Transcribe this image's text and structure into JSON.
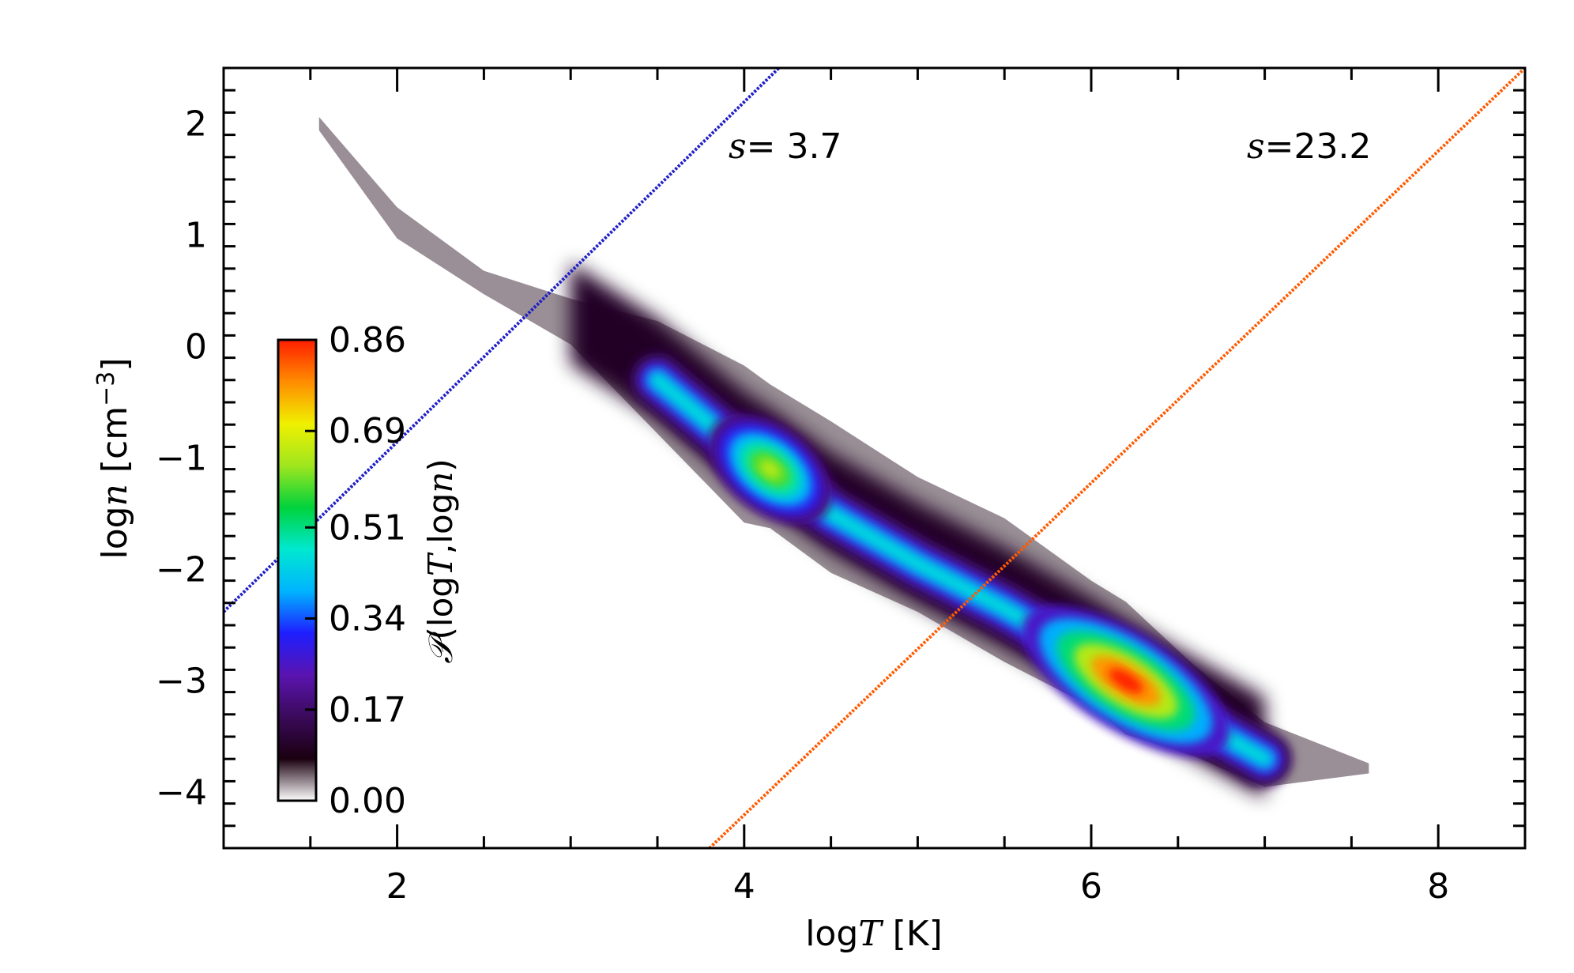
{
  "chart_data": {
    "type": "heatmap",
    "title": "",
    "xlabel": {
      "prefix": "log",
      "var": "T",
      "unit": " [K]"
    },
    "ylabel": {
      "prefix": "log",
      "var": "n",
      "unit": " [cm",
      "sup": "−3",
      "close": "]"
    },
    "xlim": [
      1.0,
      8.5
    ],
    "ylim": [
      -4.5,
      2.5
    ],
    "xticks": [
      {
        "v": 2,
        "label": "2"
      },
      {
        "v": 4,
        "label": "4"
      },
      {
        "v": 6,
        "label": "6"
      },
      {
        "v": 8,
        "label": "8"
      }
    ],
    "yticks": [
      {
        "v": 2,
        "label": "2"
      },
      {
        "v": 1,
        "label": "1"
      },
      {
        "v": 0,
        "label": "0"
      },
      {
        "v": -1,
        "label": "−1"
      },
      {
        "v": -2,
        "label": "−2"
      },
      {
        "v": -3,
        "label": "−3"
      },
      {
        "v": -4,
        "label": "−4"
      }
    ],
    "grid": false,
    "colorbar": {
      "label": {
        "script": "𝒫",
        "open": "(log",
        "var1": "T",
        "mid": ",log",
        "var2": "n",
        "close": ")"
      },
      "min": 0.0,
      "max": 0.86,
      "tick_values": [
        0.0,
        0.17,
        0.34,
        0.51,
        0.69,
        0.86
      ],
      "tick_labels": [
        "0.00",
        "0.17",
        "0.34",
        "0.51",
        "0.69",
        "0.86"
      ],
      "colormap": [
        "#ffffff",
        "#1a0010",
        "#3a0a5a",
        "#5a14b0",
        "#1e1eff",
        "#00b4ff",
        "#00e8d0",
        "#00d23c",
        "#a0e61e",
        "#f0f000",
        "#ff8c00",
        "#ff1e00"
      ],
      "placement": "inside-left"
    },
    "distribution_ridge": [
      {
        "x": 1.55,
        "y": 2.0,
        "p": 0.0
      },
      {
        "x": 2.0,
        "y": 1.1,
        "p": 0.01
      },
      {
        "x": 2.5,
        "y": 0.55,
        "p": 0.01
      },
      {
        "x": 3.0,
        "y": 0.2,
        "p": 0.02
      },
      {
        "x": 3.5,
        "y": -0.3,
        "p": 0.08
      },
      {
        "x": 4.0,
        "y": -0.95,
        "p": 0.55
      },
      {
        "x": 4.15,
        "y": -1.1,
        "p": 0.65
      },
      {
        "x": 4.5,
        "y": -1.5,
        "p": 0.45
      },
      {
        "x": 5.0,
        "y": -1.95,
        "p": 0.4
      },
      {
        "x": 5.5,
        "y": -2.35,
        "p": 0.32
      },
      {
        "x": 6.0,
        "y": -2.8,
        "p": 0.62
      },
      {
        "x": 6.2,
        "y": -3.0,
        "p": 0.86
      },
      {
        "x": 6.6,
        "y": -3.35,
        "p": 0.3
      },
      {
        "x": 7.0,
        "y": -3.7,
        "p": 0.02
      },
      {
        "x": 7.6,
        "y": -3.8,
        "p": 0.0
      }
    ],
    "peaks": [
      {
        "x": 4.15,
        "y": -1.1,
        "p": 0.65
      },
      {
        "x": 6.2,
        "y": -3.0,
        "p": 0.86
      }
    ],
    "lines": [
      {
        "name": "s-blue",
        "label": "3.7",
        "color": "#2020c8",
        "x": [
          1.0,
          4.2
        ],
        "y": [
          -2.38,
          2.5
        ]
      },
      {
        "name": "s-orange",
        "label": "23.2",
        "color": "#ff5a00",
        "x": [
          3.8,
          8.5
        ],
        "y": [
          -4.5,
          2.5
        ]
      }
    ],
    "annotations": [
      {
        "name": "s-blue-label",
        "var": "s",
        "text": "=  3.7",
        "x": 3.9,
        "y": 1.8
      },
      {
        "name": "s-orange-label",
        "var": "s",
        "text": "=23.2",
        "x": 6.9,
        "y": 1.8
      }
    ]
  }
}
